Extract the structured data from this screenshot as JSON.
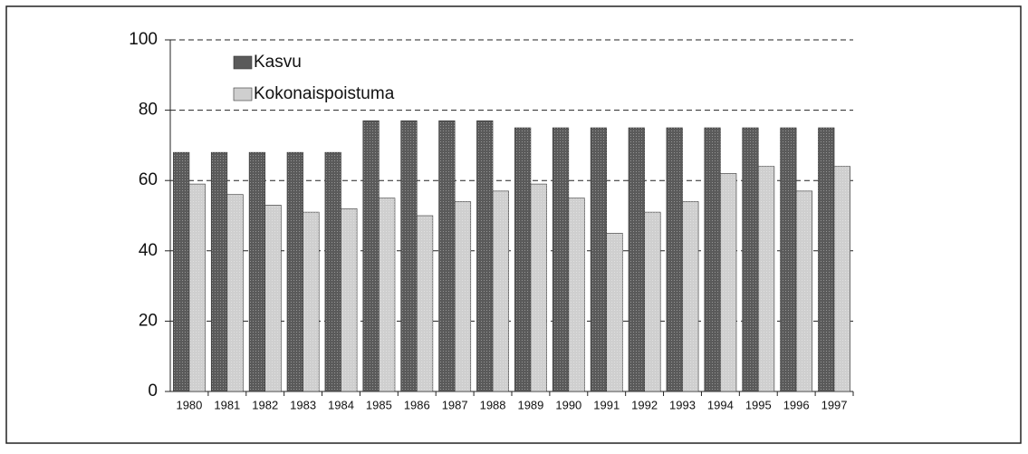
{
  "chart_data": {
    "type": "bar",
    "categories": [
      "1980",
      "1981",
      "1982",
      "1983",
      "1984",
      "1985",
      "1986",
      "1987",
      "1988",
      "1989",
      "1990",
      "1991",
      "1992",
      "1993",
      "1994",
      "1995",
      "1996",
      "1997"
    ],
    "series": [
      {
        "name": "Kasvu",
        "color": "#5a5a5a",
        "values": [
          68,
          68,
          68,
          68,
          68,
          77,
          77,
          77,
          77,
          75,
          75,
          75,
          75,
          75,
          75,
          75,
          75,
          75
        ]
      },
      {
        "name": "Kokonaispoistuma",
        "color": "#cfcfcf",
        "values": [
          59,
          56,
          53,
          51,
          52,
          55,
          50,
          54,
          57,
          59,
          55,
          45,
          51,
          54,
          62,
          64,
          57,
          64
        ]
      }
    ],
    "ylim": [
      0,
      100
    ],
    "yticks": [
      0,
      20,
      40,
      60,
      80,
      100
    ],
    "grid": true,
    "legend": "top-left"
  }
}
